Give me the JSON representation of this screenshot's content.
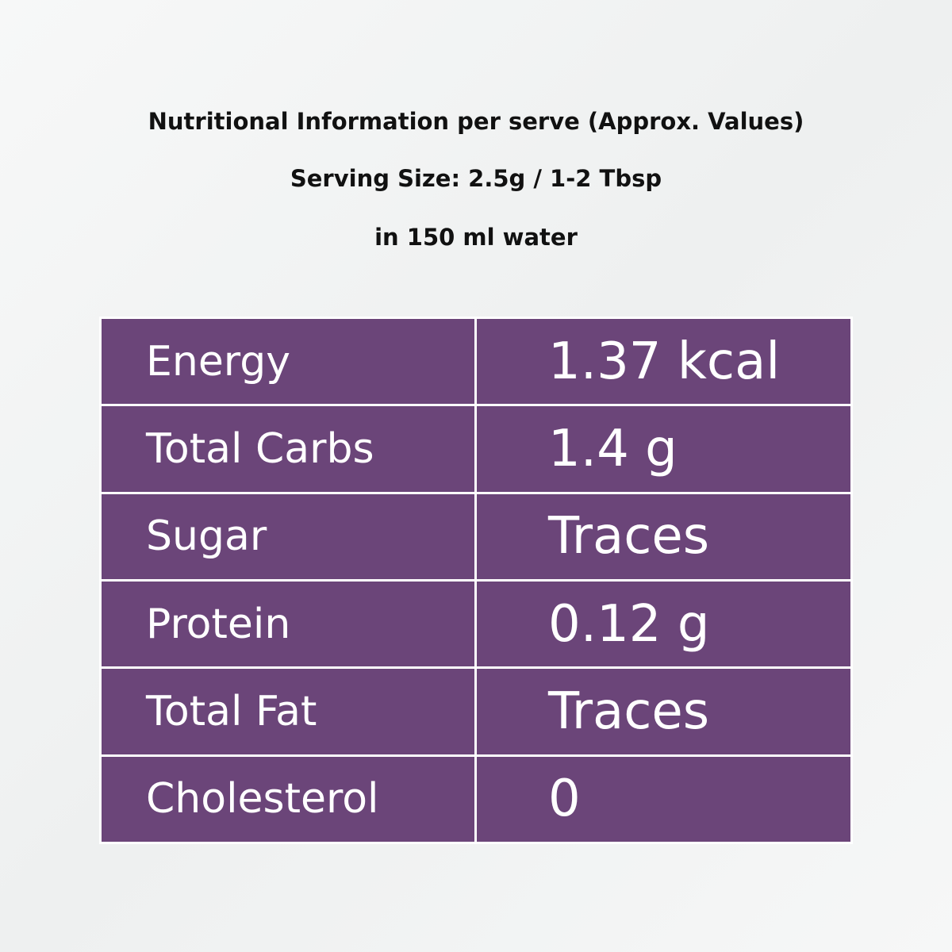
{
  "header": {
    "title": "Nutritional Information per serve (Approx. Values)",
    "serving": "Serving Size: 2.5g / 1-2 Tbsp",
    "water": "in 150 ml water"
  },
  "table": {
    "rows": [
      [
        "Energy",
        "1.37 kcal"
      ],
      [
        "Total Carbs",
        "1.4 g"
      ],
      [
        "Sugar",
        "Traces"
      ],
      [
        "Protein",
        "0.12 g"
      ],
      [
        "Total Fat",
        "Traces"
      ],
      [
        "Cholesterol",
        "0"
      ]
    ]
  }
}
